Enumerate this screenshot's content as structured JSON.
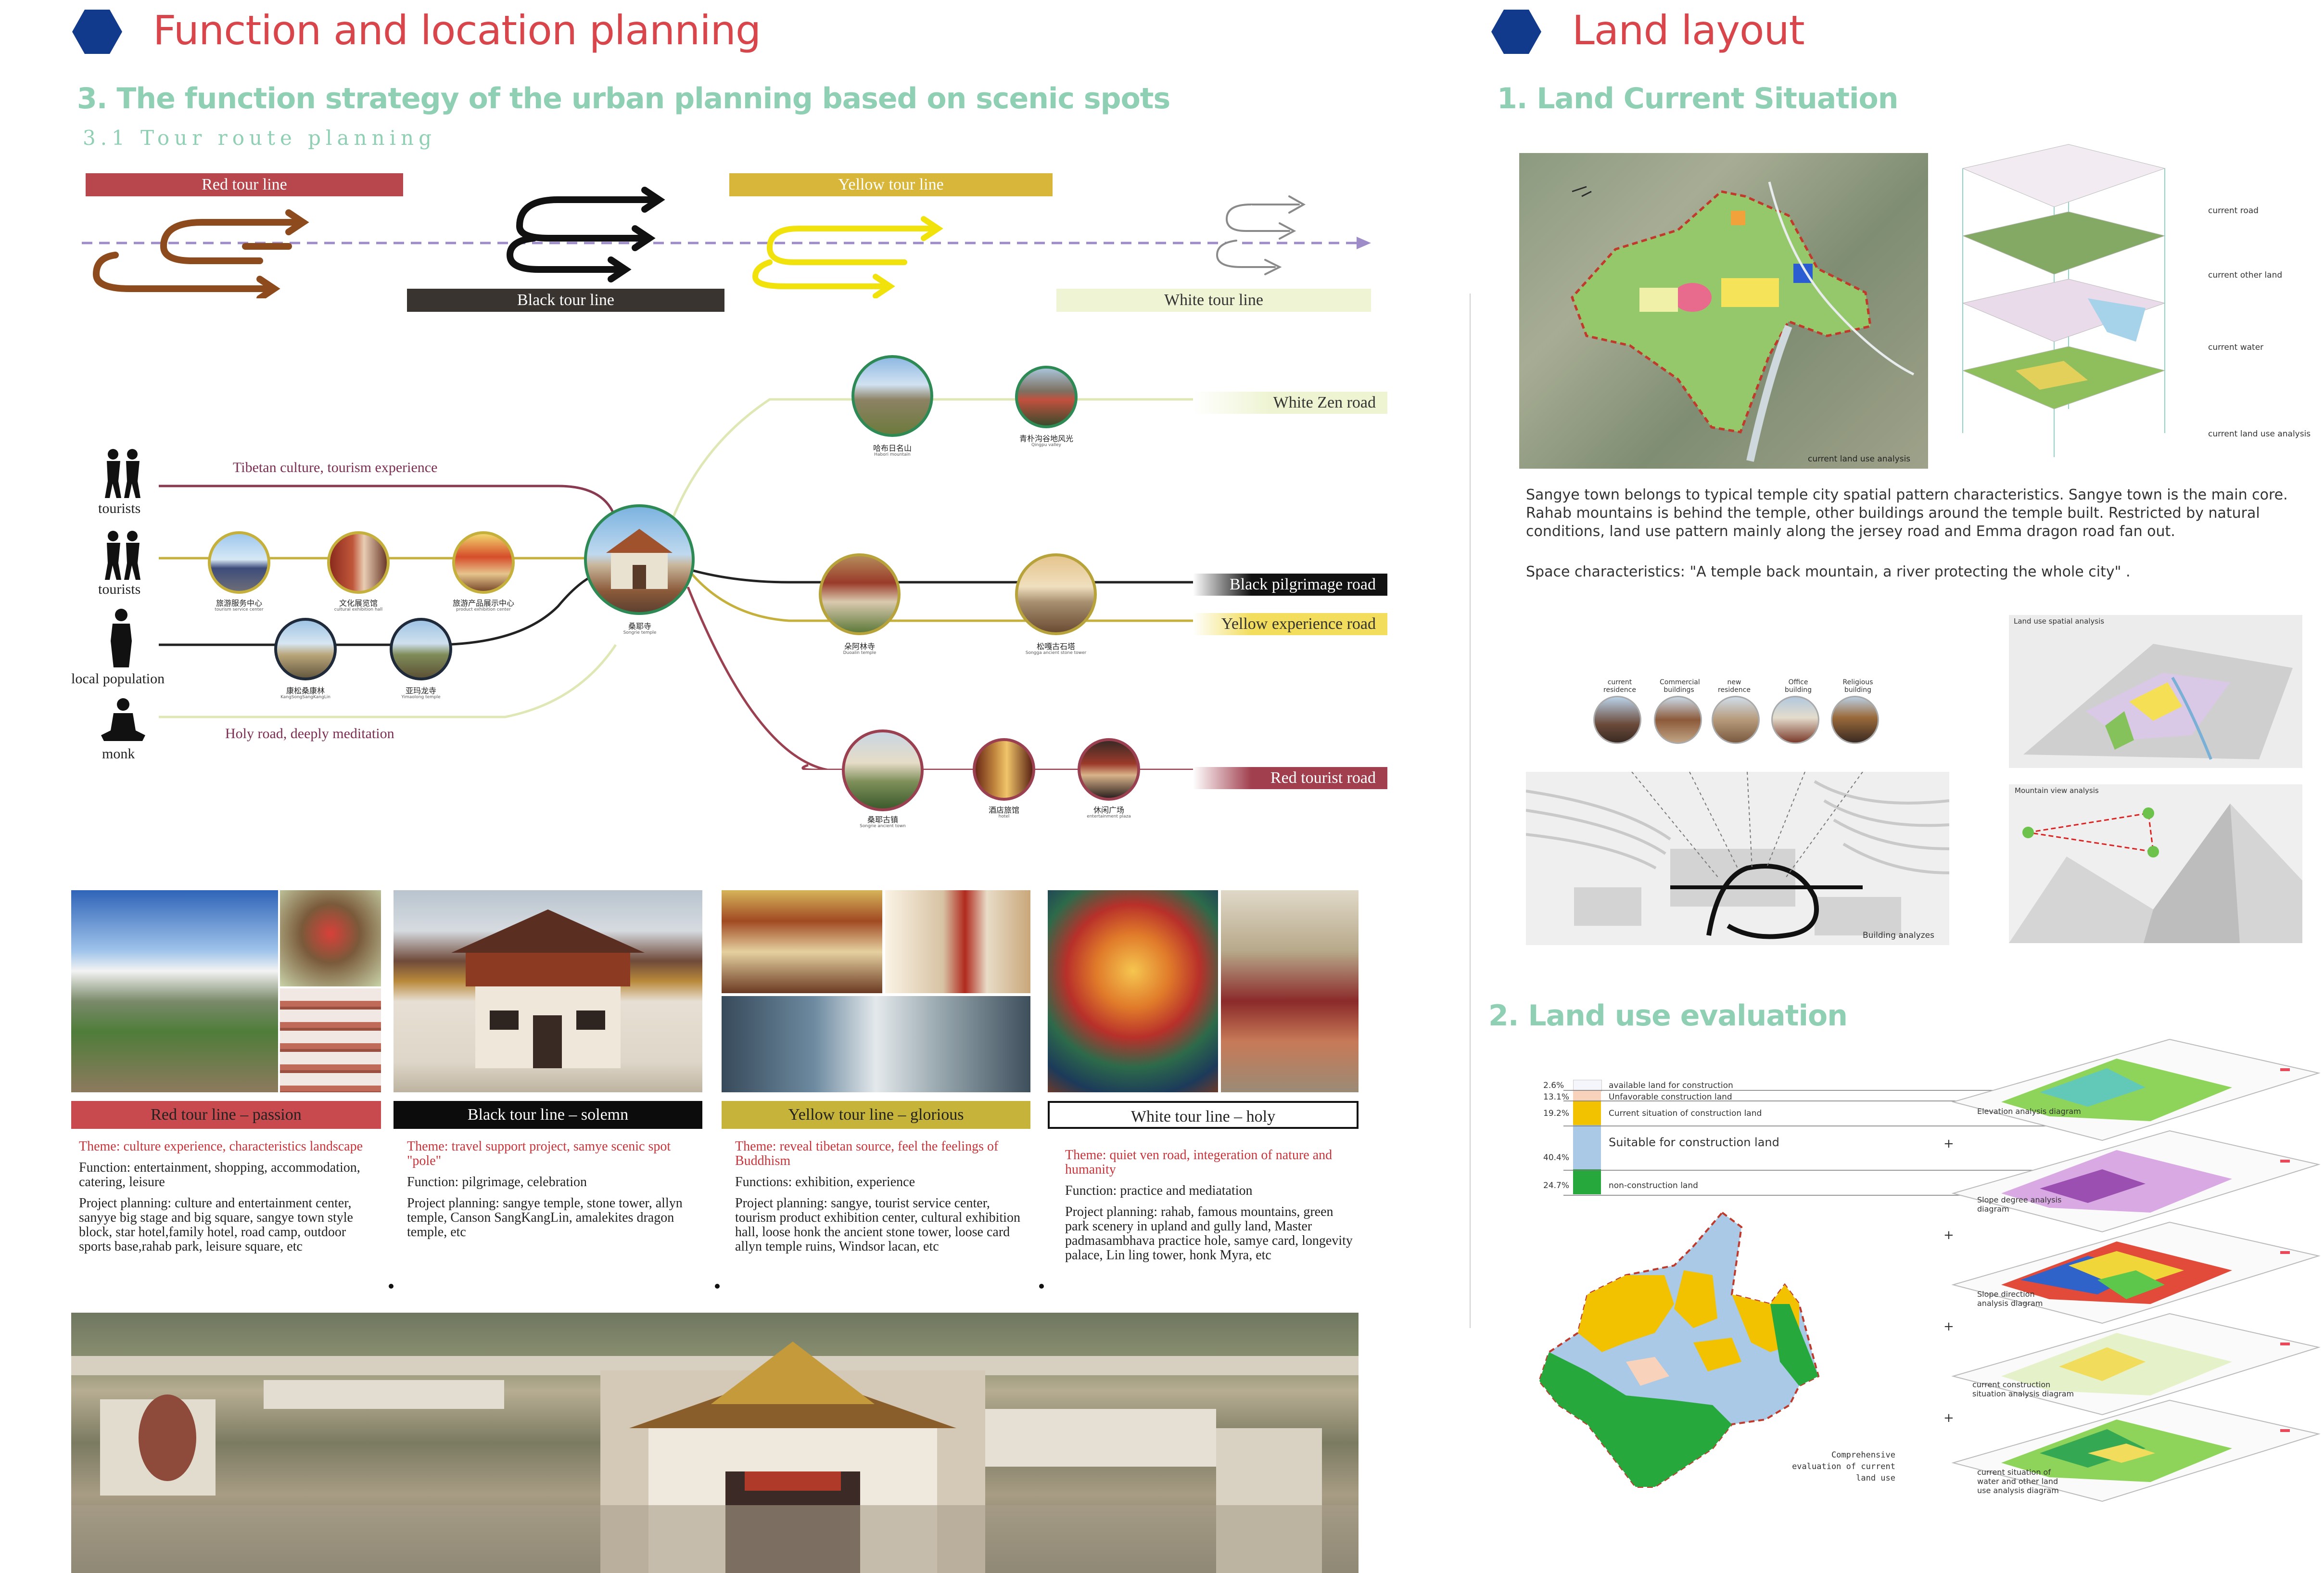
{
  "left": {
    "heading": "Function and location planning",
    "section_title": "3.  The function strategy of the urban planning based on scenic spots",
    "subsection_title": "3.1 Tour route planning",
    "tour_bars": {
      "red": "Red tour line",
      "black": "Black tour line",
      "yellow": "Yellow tour line",
      "white": "White tour line"
    },
    "people": {
      "tourists_1": "tourists",
      "tourists_2": "tourists",
      "local": "local population",
      "monk": "monk"
    },
    "route_labels": {
      "culture": "Tibetan culture, tourism experience",
      "holy": "Holy road, deeply meditation"
    },
    "roads": {
      "white_zen": "White Zen road",
      "black_pilgrimage": "Black pilgrimage road",
      "yellow_experience": "Yellow experience road",
      "red_tourist": "Red tourist road"
    },
    "hub": {
      "name": "桑耶寺",
      "en": "Songrie temple"
    },
    "nodes": [
      {
        "name": "旅游服务中心",
        "en": "tourism service center"
      },
      {
        "name": "文化展览馆",
        "en": "cultural exhibition hall"
      },
      {
        "name": "旅游产品展示中心",
        "en": "product exhibition center"
      },
      {
        "name": "康松桑康林",
        "en": "KangSongSangKangLin"
      },
      {
        "name": "亚玛龙寺",
        "en": "Yimaolong temple"
      },
      {
        "name": "哈布日名山",
        "en": "Habori mountain"
      },
      {
        "name": "青朴沟谷地风光",
        "en": "Qingpu valley"
      },
      {
        "name": "朵阿林寺",
        "en": "Duoalin temple"
      },
      {
        "name": "松嘎古石塔",
        "en": "Songga ancient stone tower"
      },
      {
        "name": "桑耶古镇",
        "en": "Songrie ancient town"
      },
      {
        "name": "酒店旅馆",
        "en": "hotel"
      },
      {
        "name": "休闲广场",
        "en": "entertainment plaza"
      }
    ],
    "columns": [
      {
        "header": "Red tour line – passion",
        "theme": "Theme: culture experience,  characteristics landscape",
        "function": "Function: entertainment, shopping, accommodation, catering, leisure",
        "project": "Project planning: culture and entertainment center, sanyye big stage and big square, sangye town style block, star hotel,family hotel, road camp, outdoor sports base,rahab  park, leisure square, etc"
      },
      {
        "header": "Black tour line – solemn",
        "theme": "Theme:  travel support project, samye scenic spot \"pole\"",
        "function": "Function: pilgrimage, celebration",
        "project": "Project planning: sangye temple, stone tower, allyn temple, Canson SangKangLin, amalekites dragon temple, etc"
      },
      {
        "header": "Yellow tour line – glorious",
        "theme": "Theme: reveal tibetan source, feel the feelings of Buddhism",
        "function": "Functions: exhibition, experience",
        "project": "Project planning: sangye, tourist service center, tourism product exhibition center, cultural exhibition hall, loose honk the ancient stone tower, loose card allyn temple ruins, Windsor lacan, etc"
      },
      {
        "header": "White tour line – holy",
        "theme": "Theme: quiet ven road,  integeration of nature and humanity",
        "function": "Function: practice and mediatation",
        "project": "Project planning: rahab, famous mountains, green park scenery in upland and gully land, Master padmasambhava practice hole, samye card, longevity palace, Lin ling tower, honk Myra, etc"
      }
    ]
  },
  "right": {
    "heading": "Land layout",
    "section1_title": "1. Land Current Situation",
    "map_caption": "current land use analysis",
    "layer_labels": [
      "current road",
      "current other land",
      "current water",
      "current land use analysis"
    ],
    "para1": "Sangye town belongs to typical temple city spatial pattern characteristics. Sangye town is the main core. Rahab mountains is behind the temple, other buildings around the temple built. Restricted by natural conditions,  land use pattern mainly along the jersey road and Emma dragon road fan out.",
    "para2": "Space characteristics: \"A temple back mountain, a river protecting the whole city\" .",
    "building_labels": [
      "current residence",
      "Commercial buildings",
      "new residence",
      "Office building",
      "Religious building"
    ],
    "building_caption": "Building analyzes",
    "spatial_caption": "Land use spatial analysis",
    "mountain_caption": "Mountain view analysis",
    "section2_title": "2. Land use evaluation",
    "legend": [
      {
        "pct": "2.6%",
        "label": "available land for construction",
        "color": "#f4f6fb"
      },
      {
        "pct": "13.1%",
        "label": "Unfavorable construction land",
        "color": "#f8d2ba"
      },
      {
        "pct": "19.2%",
        "label": "Current situation of construction land",
        "color": "#f2c200"
      },
      {
        "pct": "40.4%",
        "label": "Suitable for construction land",
        "color": "#a9c9e6"
      },
      {
        "pct": "24.7%",
        "label": "non-construction land",
        "color": "#27a83c"
      }
    ],
    "eval_caption": "Comprehensive evaluation of current land use",
    "stack_labels": [
      "Elevation analysis diagram",
      "Slope degree analysis diagram",
      "Slope direction analysis diagram",
      "current construction situation analysis diagram",
      "current situation of water and other land use analysis diagram"
    ]
  }
}
